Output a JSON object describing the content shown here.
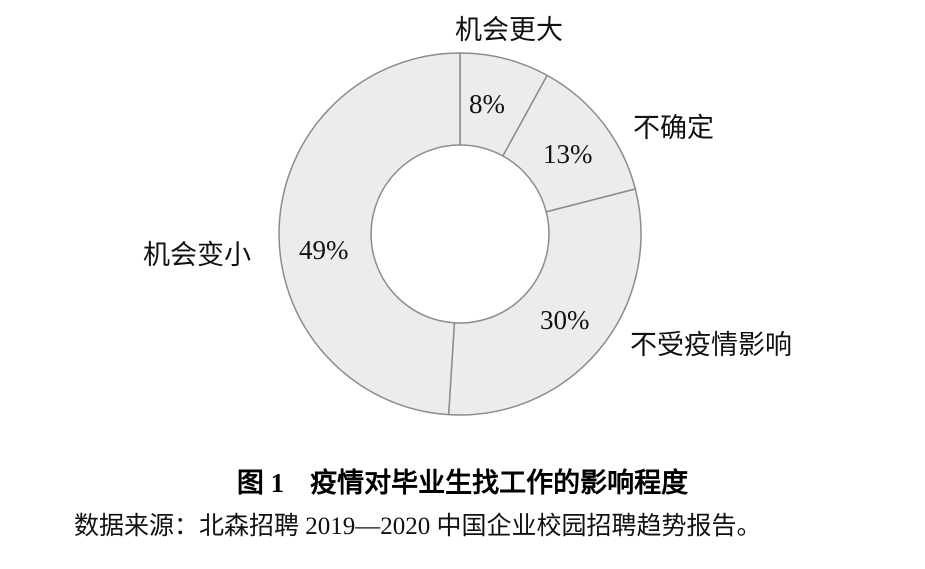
{
  "figure": {
    "title_number": "图 1",
    "title_text": "疫情对毕业生找工作的影响程度",
    "source": "数据来源：北森招聘 2019—2020 中国企业校园招聘趋势报告。"
  },
  "chart_data": {
    "type": "pie",
    "subtype": "donut",
    "title": "图 1 疫情对毕业生找工作的影响程度",
    "categories": [
      "机会更大",
      "不确定",
      "不受疫情影响",
      "机会变小"
    ],
    "values": [
      8,
      13,
      30,
      49
    ],
    "value_labels": [
      "8%",
      "13%",
      "30%",
      "49%"
    ],
    "unit": "%",
    "start_angle_deg": 0,
    "direction": "clockwise",
    "legend": "none",
    "ring_fill": "#ececec",
    "ring_stroke": "#8c8c8c",
    "inner_radius_ratio": 0.49,
    "source": "数据来源：北森招聘 2019—2020 中国企业校园招聘趋势报告。"
  }
}
